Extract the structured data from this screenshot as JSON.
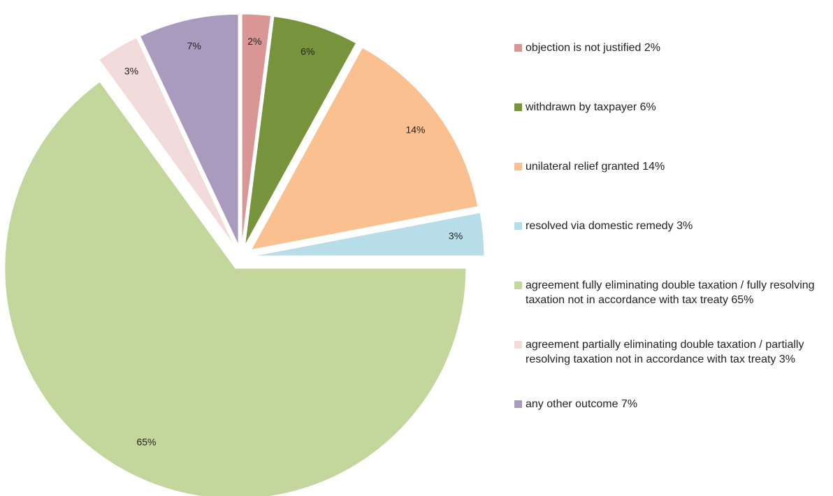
{
  "chart_data": {
    "type": "pie",
    "categories": [
      "objection is not justified 2%",
      "withdrawn by taxpayer 6%",
      "unilateral relief granted 14%",
      "resolved via domestic remedy 3%",
      "agreement fully eliminating double taxation / fully resolving taxation not in accordance with tax treaty 65%",
      "agreement partially eliminating double taxation / partially resolving taxation not in accordance with tax treaty 3%",
      "any other outcome 7%"
    ],
    "values": [
      2,
      6,
      14,
      3,
      65,
      3,
      7
    ],
    "value_labels": [
      "2%",
      "6%",
      "14%",
      "3%",
      "65%",
      "3%",
      "7%"
    ],
    "colors": [
      "#d99694",
      "#77933c",
      "#fac090",
      "#b7dee8",
      "#c3d69b",
      "#f2dcdb",
      "#a99bbd"
    ],
    "legend": "right"
  }
}
